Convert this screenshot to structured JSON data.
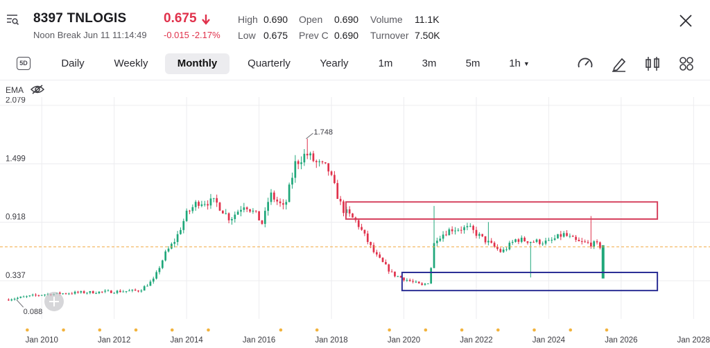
{
  "header": {
    "code": "8397",
    "name": "TNLOGIS",
    "status": "Noon Break",
    "datetime": "Jun 11 11:14:49",
    "price": "0.675",
    "change": "-0.015",
    "change_pct": "-2.17%",
    "stats": [
      {
        "label": "High",
        "value": "0.690"
      },
      {
        "label": "Low",
        "value": "0.675"
      },
      {
        "label": "Open",
        "value": "0.690"
      },
      {
        "label": "Prev C",
        "value": "0.690"
      },
      {
        "label": "Volume",
        "value": "11.1K"
      },
      {
        "label": "Turnover",
        "value": "7.50K"
      }
    ],
    "colors": {
      "down": "#e0314b",
      "up": "#1fa77a"
    }
  },
  "toolbar": {
    "period_badge": "5D",
    "tabs": [
      "Daily",
      "Weekly",
      "Monthly",
      "Quarterly",
      "Yearly",
      "1m",
      "3m",
      "5m",
      "1h"
    ],
    "active_tab": "Monthly",
    "tools": [
      "gauge-icon",
      "draw-pen-icon",
      "candlestick-icon",
      "grid-icon"
    ]
  },
  "indicator": {
    "label": "EMA"
  },
  "chart_data": {
    "type": "candlestick",
    "timeframe": "monthly",
    "y_ticks": [
      "2.079",
      "1.499",
      "0.918",
      "0.337"
    ],
    "ylim": [
      0.0,
      2.079
    ],
    "x_ticks": [
      "Jan 2010",
      "Jan 2012",
      "Jan 2014",
      "Jan 2016",
      "Jan 2018",
      "Jan 2020",
      "Jan 2022",
      "Jan 2024",
      "Jan 2026",
      "Jan 2028"
    ],
    "xlim": [
      2009.0,
      2028.3
    ],
    "current_price": 0.675,
    "high_label": "1.748",
    "low_label": "0.088",
    "anchors": [
      [
        2009.0,
        0.15
      ],
      [
        2010.0,
        0.2
      ],
      [
        2011.0,
        0.22
      ],
      [
        2012.0,
        0.23
      ],
      [
        2012.7,
        0.24
      ],
      [
        2013.1,
        0.35
      ],
      [
        2013.4,
        0.6
      ],
      [
        2013.7,
        0.75
      ],
      [
        2014.0,
        1.0
      ],
      [
        2014.3,
        1.12
      ],
      [
        2014.8,
        1.12
      ],
      [
        2015.2,
        0.95
      ],
      [
        2015.6,
        1.1
      ],
      [
        2015.9,
        1.0
      ],
      [
        2016.1,
        0.9
      ],
      [
        2016.3,
        1.2
      ],
      [
        2016.7,
        1.05
      ],
      [
        2017.0,
        1.5
      ],
      [
        2017.3,
        1.6
      ],
      [
        2017.6,
        1.5
      ],
      [
        2017.9,
        1.45
      ],
      [
        2018.3,
        1.05
      ],
      [
        2018.7,
        0.92
      ],
      [
        2019.2,
        0.6
      ],
      [
        2019.7,
        0.4
      ],
      [
        2020.2,
        0.33
      ],
      [
        2020.5,
        0.29
      ],
      [
        2020.7,
        0.33
      ],
      [
        2020.85,
        0.75
      ],
      [
        2021.3,
        0.85
      ],
      [
        2021.8,
        0.86
      ],
      [
        2022.2,
        0.75
      ],
      [
        2022.7,
        0.62
      ],
      [
        2023.1,
        0.75
      ],
      [
        2023.5,
        0.73
      ],
      [
        2024.0,
        0.72
      ],
      [
        2024.4,
        0.8
      ],
      [
        2024.8,
        0.72
      ],
      [
        2025.3,
        0.7
      ],
      [
        2025.45,
        0.675
      ]
    ],
    "spikes": [
      [
        2020.8,
        1.08
      ],
      [
        2023.5,
        0.37
      ],
      [
        2025.2,
        0.98
      ],
      [
        2022.3,
        0.92
      ]
    ],
    "annotations": [
      {
        "type": "rect",
        "color": "#d6425e",
        "x": [
          2018.4,
          2027.0
        ],
        "y": [
          0.95,
          1.12
        ]
      },
      {
        "type": "rect",
        "color": "#2b2f95",
        "x": [
          2019.95,
          2027.0
        ],
        "y": [
          0.24,
          0.42
        ]
      }
    ]
  }
}
